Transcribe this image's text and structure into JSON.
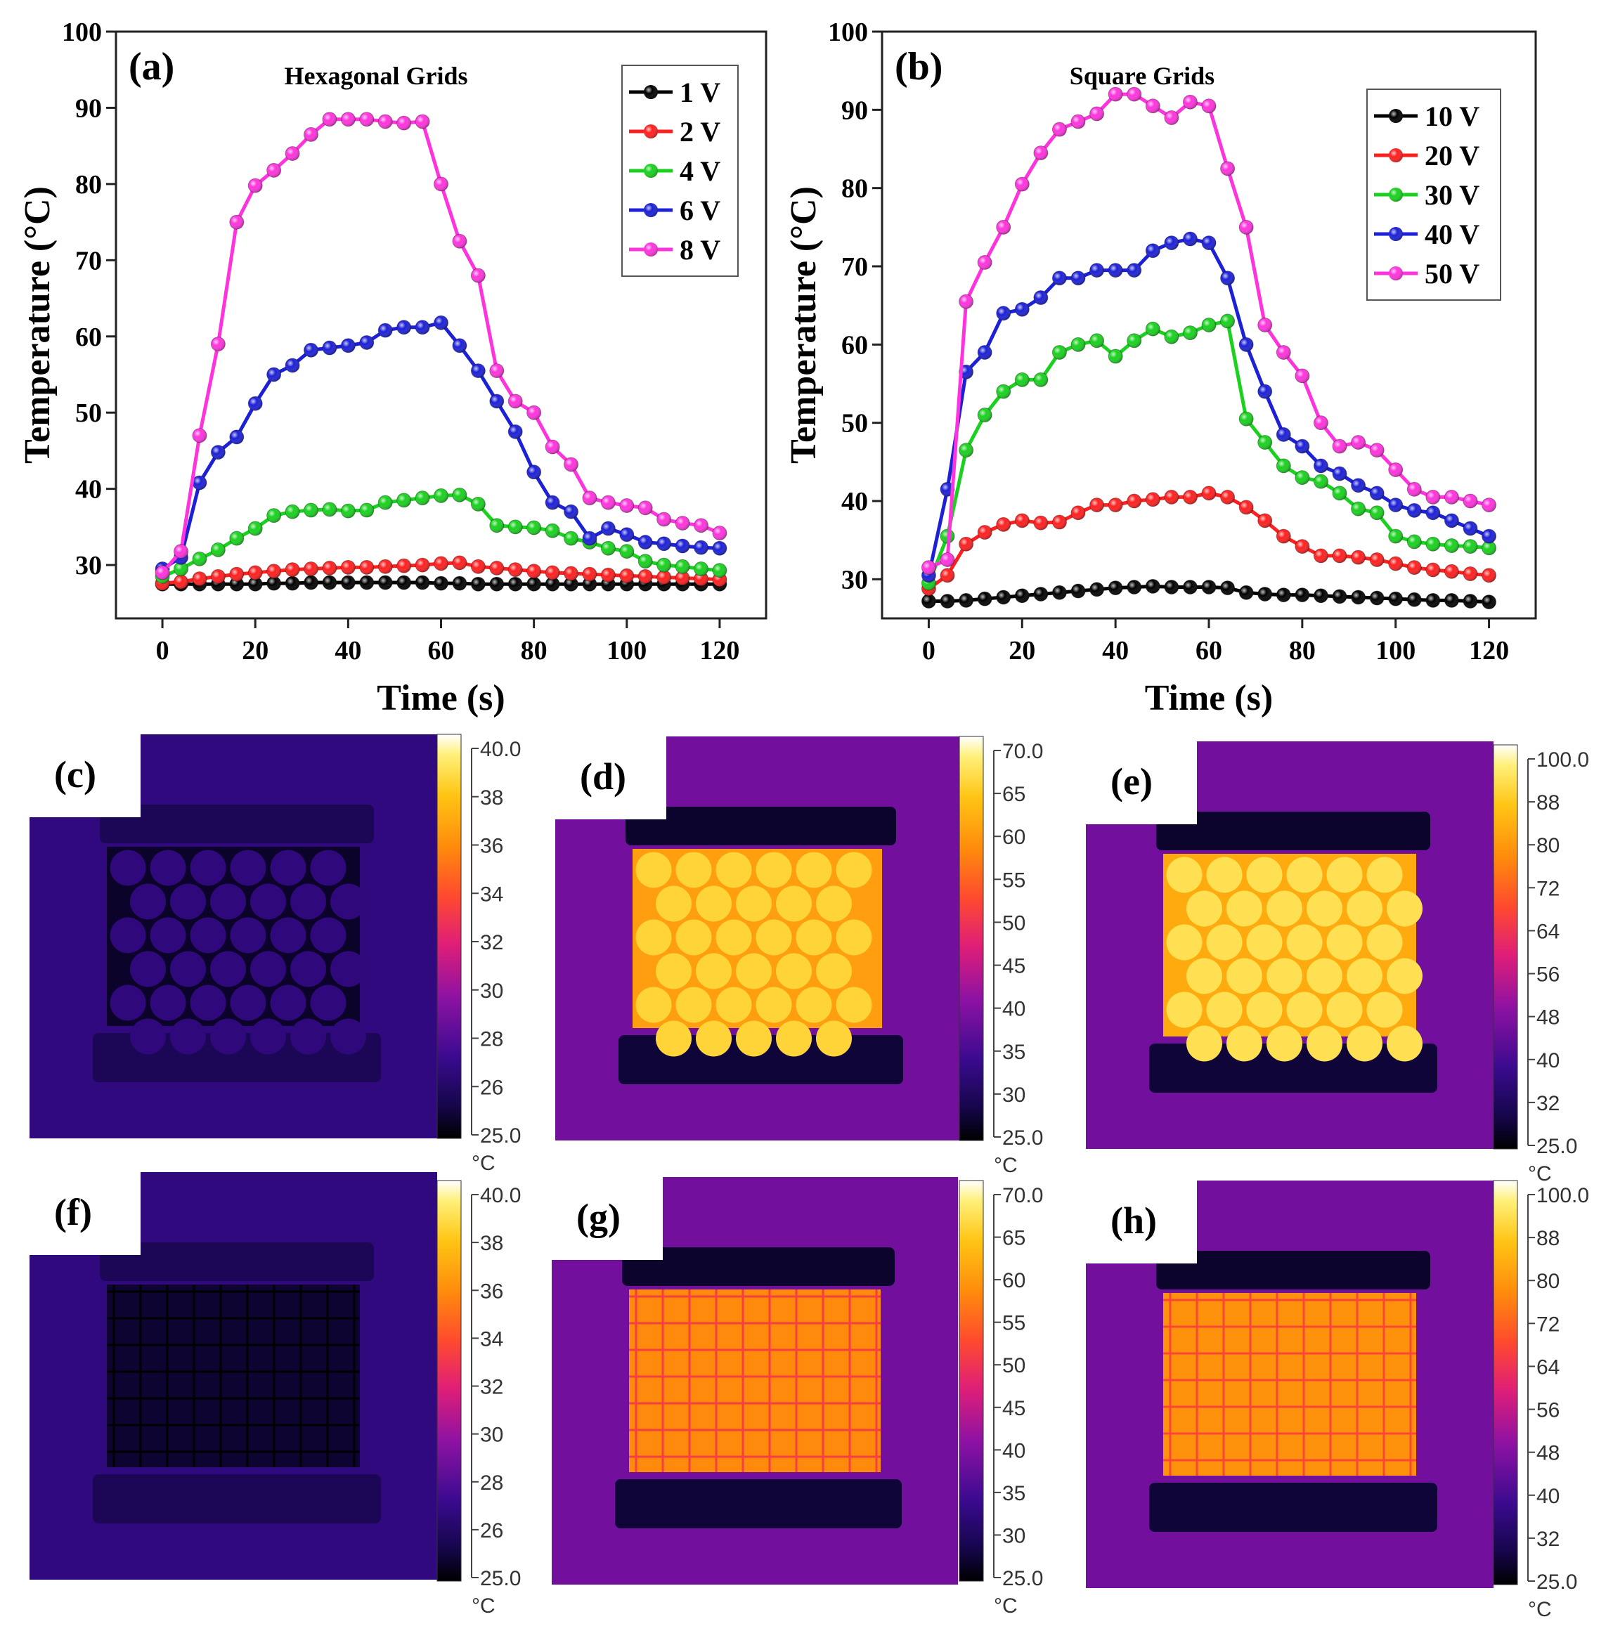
{
  "chart_data": [
    {
      "type": "line",
      "panel_label": "(a)",
      "title": "Hexagonal Grids",
      "xlabel": "Time (s)",
      "ylabel": "Temperature (°C)",
      "xlim": [
        -10,
        130
      ],
      "ylim": [
        23,
        100
      ],
      "xticks": [
        0,
        20,
        40,
        60,
        80,
        100,
        120
      ],
      "yticks": [
        30,
        40,
        50,
        60,
        70,
        80,
        90,
        100
      ],
      "legend_position": "top-right",
      "x": [
        0,
        4,
        8,
        12,
        16,
        20,
        24,
        28,
        32,
        36,
        40,
        44,
        48,
        52,
        56,
        60,
        64,
        68,
        72,
        76,
        80,
        84,
        88,
        92,
        96,
        100,
        104,
        108,
        112,
        116,
        120
      ],
      "series": [
        {
          "name": "1 V",
          "color": "#000000",
          "values": [
            27.5,
            27.5,
            27.5,
            27.5,
            27.5,
            27.5,
            27.6,
            27.6,
            27.7,
            27.7,
            27.7,
            27.7,
            27.7,
            27.7,
            27.7,
            27.6,
            27.6,
            27.5,
            27.5,
            27.5,
            27.5,
            27.5,
            27.5,
            27.5,
            27.5,
            27.5,
            27.5,
            27.5,
            27.5,
            27.5,
            27.5
          ]
        },
        {
          "name": "2 V",
          "color": "#ff1f1f",
          "values": [
            27.6,
            27.8,
            28.2,
            28.5,
            28.8,
            29.0,
            29.2,
            29.4,
            29.5,
            29.6,
            29.7,
            29.7,
            29.8,
            29.9,
            30.0,
            30.2,
            30.3,
            29.8,
            29.6,
            29.4,
            29.2,
            29.0,
            28.9,
            28.8,
            28.7,
            28.6,
            28.5,
            28.4,
            28.3,
            28.2,
            28.1
          ]
        },
        {
          "name": "4 V",
          "color": "#19d11e",
          "values": [
            28.5,
            29.5,
            30.8,
            32.0,
            33.5,
            34.8,
            36.5,
            37.0,
            37.2,
            37.3,
            37.1,
            37.2,
            38.2,
            38.5,
            38.8,
            39.1,
            39.2,
            38.0,
            35.2,
            35.0,
            34.9,
            34.5,
            33.5,
            33.0,
            32.2,
            31.8,
            30.5,
            30.0,
            29.8,
            29.5,
            29.3
          ]
        },
        {
          "name": "6 V",
          "color": "#1c20d6",
          "values": [
            29.5,
            31.0,
            40.8,
            44.8,
            46.8,
            51.2,
            55.0,
            56.2,
            58.2,
            58.5,
            58.8,
            59.2,
            60.8,
            61.2,
            61.2,
            61.8,
            58.8,
            55.5,
            51.5,
            47.5,
            42.2,
            38.2,
            37.0,
            33.5,
            34.8,
            34.0,
            33.0,
            32.8,
            32.5,
            32.3,
            32.2
          ]
        },
        {
          "name": "8 V",
          "color": "#ff33dd",
          "values": [
            29.0,
            31.8,
            47.0,
            59.0,
            75.0,
            79.8,
            81.8,
            84.0,
            86.5,
            88.5,
            88.5,
            88.5,
            88.2,
            88.0,
            88.2,
            80.0,
            72.5,
            68.0,
            55.5,
            51.5,
            50.0,
            45.5,
            43.2,
            38.8,
            38.2,
            37.8,
            37.5,
            36.0,
            35.5,
            35.2,
            34.2
          ]
        }
      ]
    },
    {
      "type": "line",
      "panel_label": "(b)",
      "title": "Square Grids",
      "xlabel": "Time (s)",
      "ylabel": "Temperature (°C)",
      "xlim": [
        -10,
        130
      ],
      "ylim": [
        25,
        100
      ],
      "xticks": [
        0,
        20,
        40,
        60,
        80,
        100,
        120
      ],
      "yticks": [
        30,
        40,
        50,
        60,
        70,
        80,
        90,
        100
      ],
      "legend_position": "top-right",
      "x": [
        0,
        4,
        8,
        12,
        16,
        20,
        24,
        28,
        32,
        36,
        40,
        44,
        48,
        52,
        56,
        60,
        64,
        68,
        72,
        76,
        80,
        84,
        88,
        92,
        96,
        100,
        104,
        108,
        112,
        116,
        120
      ],
      "series": [
        {
          "name": "10 V",
          "color": "#000000",
          "values": [
            27.2,
            27.2,
            27.3,
            27.5,
            27.7,
            27.9,
            28.1,
            28.3,
            28.5,
            28.7,
            28.9,
            29.0,
            29.1,
            29.0,
            29.0,
            29.0,
            28.9,
            28.3,
            28.1,
            28.0,
            28.0,
            27.9,
            27.8,
            27.7,
            27.6,
            27.5,
            27.4,
            27.3,
            27.3,
            27.2,
            27.1
          ]
        },
        {
          "name": "20 V",
          "color": "#ff1f1f",
          "values": [
            28.8,
            30.5,
            34.5,
            36.0,
            37.0,
            37.5,
            37.2,
            37.3,
            38.5,
            39.5,
            39.5,
            40.0,
            40.2,
            40.5,
            40.5,
            41.0,
            40.5,
            39.2,
            37.5,
            35.5,
            34.2,
            33.0,
            33.0,
            32.8,
            32.5,
            32.0,
            31.5,
            31.2,
            31.0,
            30.7,
            30.5
          ]
        },
        {
          "name": "30 V",
          "color": "#19d11e",
          "values": [
            29.5,
            35.5,
            46.5,
            51.0,
            54.0,
            55.5,
            55.5,
            59.0,
            60.0,
            60.5,
            58.5,
            60.5,
            62.0,
            61.0,
            61.5,
            62.5,
            63.0,
            50.5,
            47.5,
            44.5,
            43.0,
            42.5,
            41.0,
            39.0,
            38.5,
            35.5,
            34.8,
            34.5,
            34.3,
            34.2,
            34.0
          ]
        },
        {
          "name": "40 V",
          "color": "#1c20d6",
          "values": [
            30.5,
            41.5,
            56.5,
            59.0,
            64.0,
            64.5,
            66.0,
            68.5,
            68.5,
            69.5,
            69.5,
            69.5,
            72.0,
            73.0,
            73.5,
            73.0,
            68.5,
            60.0,
            54.0,
            48.5,
            47.0,
            44.5,
            43.5,
            42.0,
            41.0,
            39.5,
            38.8,
            38.5,
            37.5,
            36.5,
            35.5
          ]
        },
        {
          "name": "50 V",
          "color": "#ff33dd",
          "values": [
            31.5,
            32.5,
            65.5,
            70.5,
            75.0,
            80.5,
            84.5,
            87.5,
            88.5,
            89.5,
            92.0,
            92.0,
            90.5,
            89.0,
            91.0,
            90.5,
            82.5,
            75.0,
            62.5,
            59.0,
            56.0,
            50.0,
            47.0,
            47.5,
            46.5,
            44.0,
            41.5,
            40.5,
            40.5,
            40.0,
            39.5
          ]
        }
      ]
    }
  ],
  "thermal_images": [
    {
      "label": "(c)",
      "scale": [
        "40.0",
        "38",
        "36",
        "34",
        "32",
        "30",
        "28",
        "26",
        "25.0"
      ],
      "unit": "°C",
      "pattern": "hex",
      "level": 0.05
    },
    {
      "label": "(d)",
      "scale": [
        "70.0",
        "65",
        "60",
        "55",
        "50",
        "45",
        "40",
        "35",
        "30",
        "25.0"
      ],
      "unit": "°C",
      "pattern": "hex",
      "level": 0.85
    },
    {
      "label": "(e)",
      "scale": [
        "100.0",
        "88",
        "80",
        "72",
        "64",
        "56",
        "48",
        "40",
        "32",
        "25.0"
      ],
      "unit": "°C",
      "pattern": "hex",
      "level": 0.88
    },
    {
      "label": "(f)",
      "scale": [
        "40.0",
        "38",
        "36",
        "34",
        "32",
        "30",
        "28",
        "26",
        "25.0"
      ],
      "unit": "°C",
      "pattern": "square",
      "level": 0.06
    },
    {
      "label": "(g)",
      "scale": [
        "70.0",
        "65",
        "60",
        "55",
        "50",
        "45",
        "40",
        "35",
        "30",
        "25.0"
      ],
      "unit": "°C",
      "pattern": "square",
      "level": 0.8
    },
    {
      "label": "(h)",
      "scale": [
        "100.0",
        "88",
        "80",
        "72",
        "64",
        "56",
        "48",
        "40",
        "32",
        "25.0"
      ],
      "unit": "°C",
      "pattern": "square",
      "level": 0.82
    }
  ]
}
